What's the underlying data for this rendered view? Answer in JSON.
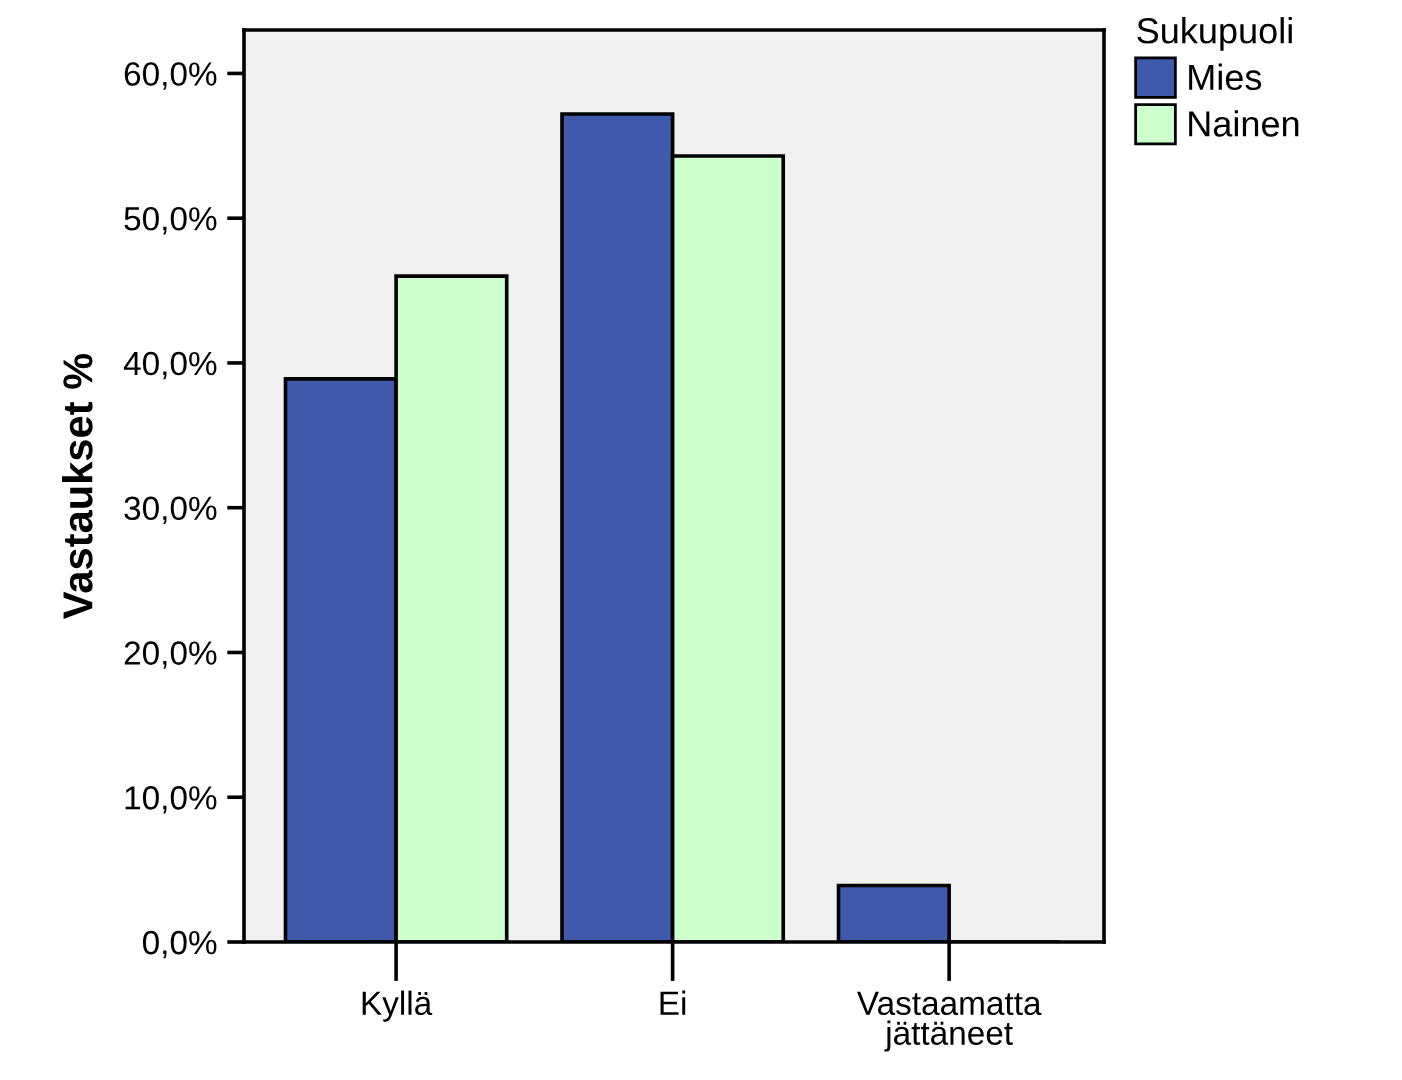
{
  "chart_data": {
    "type": "bar",
    "ylabel": "Vastaukset %",
    "legend_title": "Sukupuoli",
    "legend": "top right",
    "categories": [
      "Kyllä",
      "Ei",
      "Vastaamatta\njättäneet"
    ],
    "series": [
      {
        "name": "Mies",
        "color": "#3f59ab",
        "values": [
          38.9,
          57.2,
          3.9
        ]
      },
      {
        "name": "Nainen",
        "color": "#ccffcc",
        "values": [
          46.0,
          54.3,
          0
        ]
      }
    ],
    "ylim": [
      0,
      63
    ],
    "yticks": [
      {
        "value": 0,
        "label": "0,0%"
      },
      {
        "value": 10,
        "label": "10,0%"
      },
      {
        "value": 20,
        "label": "20,0%"
      },
      {
        "value": 30,
        "label": "30,0%"
      },
      {
        "value": 40,
        "label": "40,0%"
      },
      {
        "value": 50,
        "label": "50,0%"
      },
      {
        "value": 60,
        "label": "60,0%"
      }
    ],
    "grid": false
  }
}
